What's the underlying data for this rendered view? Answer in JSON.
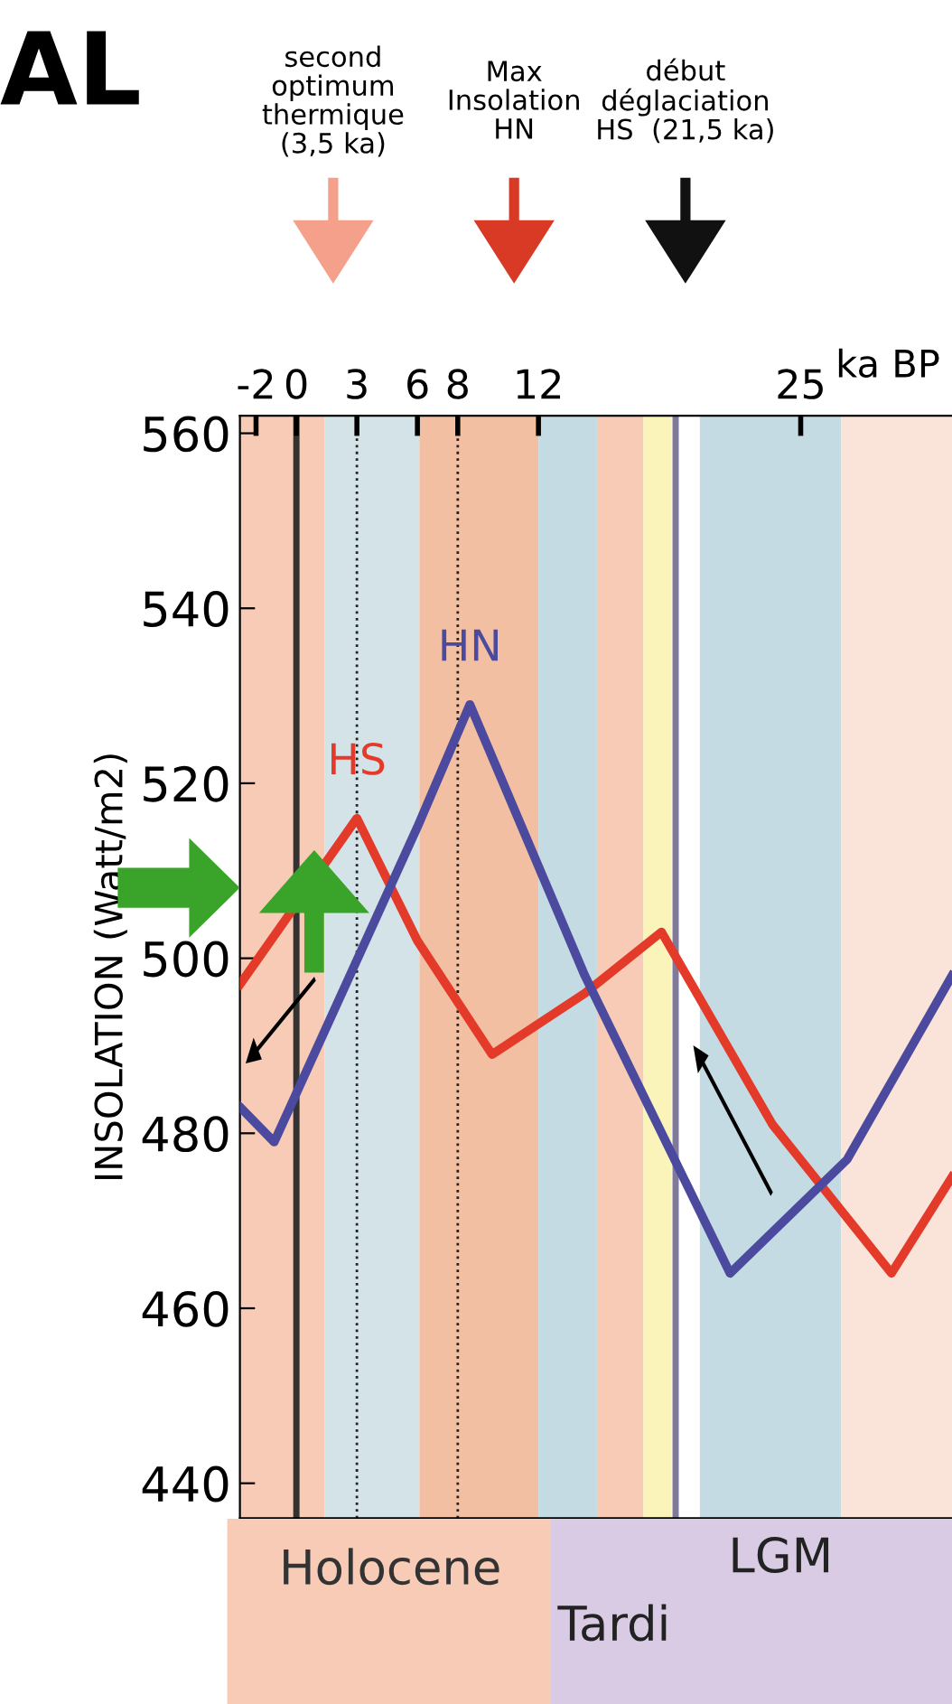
{
  "chart_data": {
    "type": "line",
    "title": "AL",
    "xlabel": "ka BP",
    "ylabel": "INSOLATION (Watt/m2)",
    "x": [
      -2.8,
      -1.1,
      3,
      6,
      8.6,
      9.7,
      14.3,
      18.1,
      21.5,
      23.6,
      27.3,
      29.5,
      32.5
    ],
    "series": [
      {
        "name": "HS",
        "color": "#e33a2a",
        "values": [
          497,
          null,
          516,
          502,
          null,
          489,
          496,
          503,
          null,
          481,
          null,
          464,
          475
        ]
      },
      {
        "name": "HN",
        "color": "#4b4a9e",
        "values": [
          483,
          479,
          null,
          515,
          529,
          null,
          498,
          null,
          464,
          null,
          477,
          null,
          498
        ]
      }
    ],
    "xlim": [
      -2.8,
      32.5
    ],
    "xticks": [
      -2,
      0,
      3,
      6,
      8,
      12,
      25
    ],
    "ylim": [
      436,
      562
    ],
    "yticks": [
      440,
      460,
      480,
      500,
      520,
      540,
      560
    ],
    "grid": false,
    "legend": false,
    "marker": "none",
    "line_style": "solid",
    "bands": [
      {
        "axis": "x",
        "from": -2.8,
        "to": 1.4,
        "color": "#f7cbb5"
      },
      {
        "axis": "x",
        "from": 1.4,
        "to": 6.1,
        "color": "#d3e3e8"
      },
      {
        "axis": "x",
        "from": 6.1,
        "to": 12,
        "color": "#f3bfa2"
      },
      {
        "axis": "x",
        "from": 12,
        "to": 14.9,
        "color": "#c5dbe3"
      },
      {
        "axis": "x",
        "from": 14.9,
        "to": 17.2,
        "color": "#f7cbb5"
      },
      {
        "axis": "x",
        "from": 17.2,
        "to": 18.6,
        "color": "#faf4bb"
      },
      {
        "axis": "x",
        "from": 20,
        "to": 27,
        "color": "#c5dbe3"
      },
      {
        "axis": "x",
        "from": 27,
        "to": 32.5,
        "color": "#fae3d8"
      }
    ],
    "ref_lines": [
      {
        "axis": "x",
        "value": 0,
        "color": "#333333",
        "line_style": "solid"
      },
      {
        "axis": "x",
        "value": 3,
        "color": "#222222",
        "line_style": "dotted"
      },
      {
        "axis": "x",
        "value": 8,
        "color": "#222222",
        "line_style": "dotted"
      },
      {
        "axis": "x",
        "value": 18.8,
        "color": "#7f7a99",
        "line_style": "solid"
      }
    ],
    "annotations": [
      "second\noptimum\nthermique\n(3,5 ka)",
      "Max\nInsolation\nHN",
      "début\ndéglaciation\nHS  (21,5 ka)",
      "Holocene",
      "LGM",
      "Tardi"
    ]
  }
}
